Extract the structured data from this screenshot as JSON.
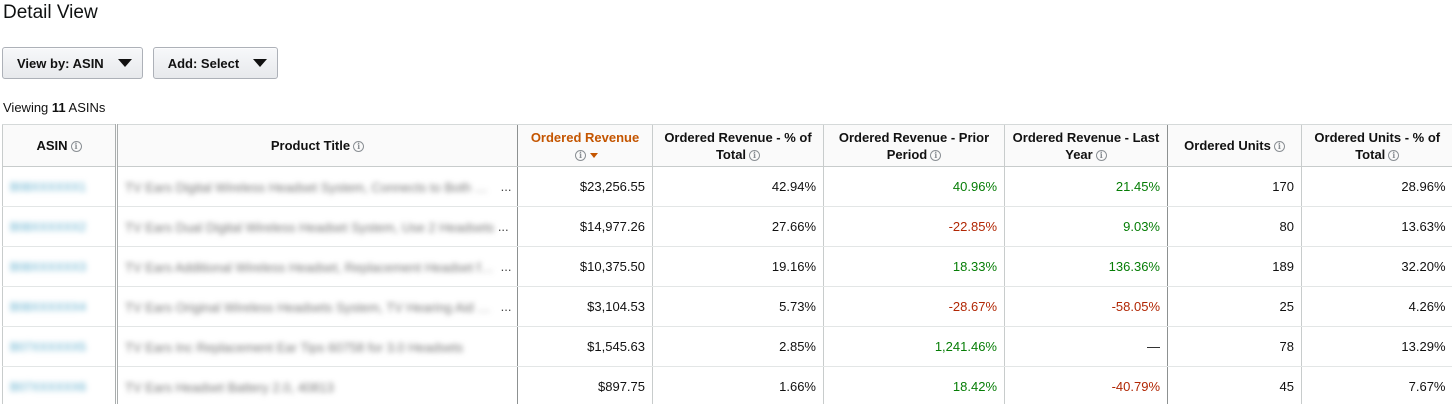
{
  "page_title": "Detail View",
  "controls": {
    "view_by_label": "View by: ASIN",
    "add_label": "Add: Select"
  },
  "viewing": {
    "prefix": "Viewing ",
    "count": "11",
    "suffix": " ASINs"
  },
  "table": {
    "columns": [
      {
        "label": "ASIN"
      },
      {
        "label": "Product Title"
      },
      {
        "label": "Ordered Revenue"
      },
      {
        "label": "Ordered Revenue - % of Total"
      },
      {
        "label": "Ordered Revenue - Prior Period"
      },
      {
        "label": "Ordered Revenue - Last Year"
      },
      {
        "label": "Ordered Units"
      },
      {
        "label": "Ordered Units - % of Total"
      }
    ],
    "rows": [
      {
        "asin": "B08XXXXXX1",
        "title": "TV Ears Digital Wireless Headset System, Connects to Both Digital and Analog",
        "ellipsis": "...",
        "revenue": "$23,256.55",
        "pct_total": "42.94%",
        "prior": "40.96%",
        "last_year": "21.45%",
        "units": "170",
        "units_pct": "28.96%"
      },
      {
        "asin": "B08XXXXXX2",
        "title": "TV Ears Dual Digital Wireless Headset System, Use 2 Headsets",
        "ellipsis": "...",
        "revenue": "$14,977.26",
        "pct_total": "27.66%",
        "prior": "-22.85%",
        "last_year": "9.03%",
        "units": "80",
        "units_pct": "13.63%"
      },
      {
        "asin": "B08XXXXXX3",
        "title": "TV Ears Additional Wireless Headset, Replacement Headset for Digital",
        "ellipsis": "...",
        "revenue": "$10,375.50",
        "pct_total": "19.16%",
        "prior": "18.33%",
        "last_year": "136.36%",
        "units": "189",
        "units_pct": "32.20%"
      },
      {
        "asin": "B08XXXXXX4",
        "title": "TV Ears Original Wireless Headsets System, TV Hearing Aid Device",
        "ellipsis": "...",
        "revenue": "$3,104.53",
        "pct_total": "5.73%",
        "prior": "-28.67%",
        "last_year": "-58.05%",
        "units": "25",
        "units_pct": "4.26%"
      },
      {
        "asin": "B07XXXXXX5",
        "title": "TV Ears Inc Replacement Ear Tips 60758 for 3.0 Headsets",
        "ellipsis": "",
        "revenue": "$1,545.63",
        "pct_total": "2.85%",
        "prior": "1,241.46%",
        "last_year": "—",
        "units": "78",
        "units_pct": "13.29%"
      },
      {
        "asin": "B07XXXXXX6",
        "title": "TV Ears Headset Battery 2.0, 40813",
        "ellipsis": "",
        "revenue": "$897.75",
        "pct_total": "1.66%",
        "prior": "18.42%",
        "last_year": "-40.79%",
        "units": "45",
        "units_pct": "7.67%"
      }
    ]
  },
  "colors": {
    "positive": "#067d06",
    "negative": "#b12704",
    "sorted_header": "#c45500",
    "asin_link": "#55a8c9"
  }
}
